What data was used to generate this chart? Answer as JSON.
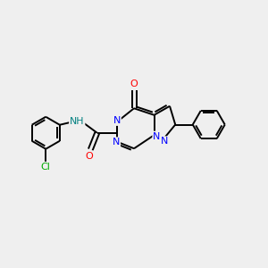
{
  "bg_color": "#efefef",
  "bond_color": "#000000",
  "n_color": "#0000ff",
  "o_color": "#ff0000",
  "cl_color": "#00aa00",
  "nh_color": "#008080",
  "lw": 1.4,
  "figsize": [
    3.0,
    3.0
  ],
  "dpi": 100,
  "xlim": [
    0,
    12
  ],
  "ylim": [
    0,
    12
  ]
}
